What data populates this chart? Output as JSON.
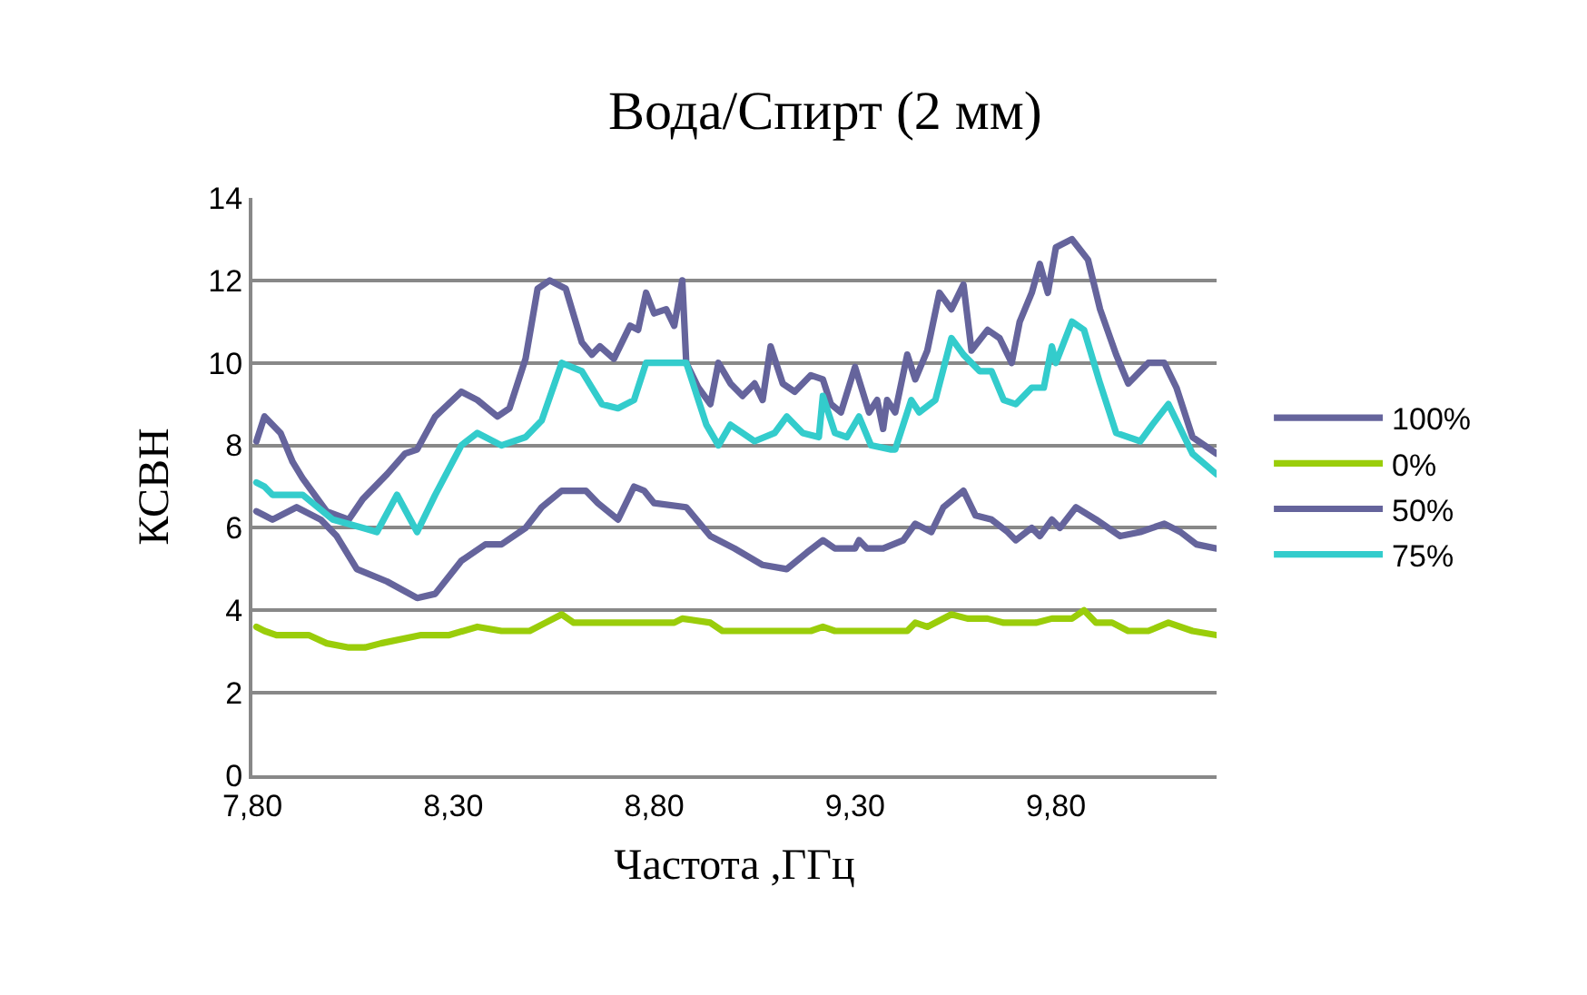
{
  "chart_data": {
    "type": "line",
    "title": "Вода/Спирт (2 мм)",
    "xlabel": "Частота ,ГГц",
    "ylabel": "КСВН",
    "xlim": [
      7.8,
      10.2
    ],
    "xticks": [
      {
        "value": 7.8,
        "label": "7,80"
      },
      {
        "value": 8.3,
        "label": "8,30"
      },
      {
        "value": 8.8,
        "label": "8,80"
      },
      {
        "value": 9.3,
        "label": "9,30"
      },
      {
        "value": 9.8,
        "label": "9,80"
      }
    ],
    "ylim": [
      0,
      14
    ],
    "yticks": [
      0,
      2,
      4,
      6,
      8,
      10,
      12,
      14
    ],
    "grid": "y",
    "legend": "right",
    "marker": "none",
    "line_style": "solid",
    "series": [
      {
        "name": "100%",
        "color": "#65649c",
        "x": [
          7.81,
          7.83,
          7.87,
          7.9,
          7.925,
          7.985,
          8.04,
          8.075,
          8.135,
          8.18,
          8.21,
          8.255,
          8.32,
          8.36,
          8.41,
          8.44,
          8.48,
          8.51,
          8.54,
          8.58,
          8.62,
          8.645,
          8.665,
          8.7,
          8.74,
          8.76,
          8.78,
          8.8,
          8.83,
          8.85,
          8.87,
          8.88,
          8.91,
          8.94,
          8.96,
          8.99,
          9.02,
          9.05,
          9.07,
          9.09,
          9.12,
          9.15,
          9.19,
          9.22,
          9.24,
          9.265,
          9.3,
          9.335,
          9.355,
          9.37,
          9.38,
          9.4,
          9.43,
          9.45,
          9.48,
          9.51,
          9.54,
          9.57,
          9.59,
          9.63,
          9.66,
          9.69,
          9.71,
          9.74,
          9.76,
          9.78,
          9.8,
          9.84,
          9.88,
          9.91,
          9.95,
          9.98,
          10.03,
          10.07,
          10.1,
          10.14,
          10.2
        ],
        "values": [
          8.1,
          8.7,
          8.3,
          7.6,
          7.2,
          6.4,
          6.2,
          6.7,
          7.3,
          7.8,
          7.9,
          8.7,
          9.3,
          9.1,
          8.7,
          8.9,
          10.1,
          11.8,
          12,
          11.8,
          10.5,
          10.2,
          10.4,
          10.1,
          10.9,
          10.8,
          11.7,
          11.2,
          11.3,
          10.9,
          12,
          10,
          9.4,
          9,
          10,
          9.5,
          9.2,
          9.5,
          9.1,
          10.4,
          9.5,
          9.3,
          9.7,
          9.6,
          9,
          8.8,
          9.9,
          8.8,
          9.1,
          8.4,
          9.1,
          8.8,
          10.2,
          9.6,
          10.3,
          11.7,
          11.3,
          11.9,
          10.3,
          10.8,
          10.6,
          10,
          11,
          11.7,
          12.4,
          11.7,
          12.8,
          13,
          12.5,
          11.3,
          10.2,
          9.5,
          10,
          10,
          9.4,
          8.2,
          7.8
        ]
      },
      {
        "name": "0%",
        "color": "#9acd0a",
        "x": [
          7.81,
          7.83,
          7.86,
          7.94,
          7.985,
          8.04,
          8.08,
          8.12,
          8.22,
          8.29,
          8.36,
          8.42,
          8.49,
          8.53,
          8.57,
          8.6,
          8.85,
          8.87,
          8.94,
          8.97,
          9.19,
          9.22,
          9.25,
          9.43,
          9.45,
          9.48,
          9.54,
          9.58,
          9.63,
          9.67,
          9.75,
          9.79,
          9.84,
          9.87,
          9.9,
          9.94,
          9.98,
          10.03,
          10.08,
          10.14,
          10.2
        ],
        "values": [
          3.6,
          3.5,
          3.4,
          3.4,
          3.2,
          3.1,
          3.1,
          3.2,
          3.4,
          3.4,
          3.6,
          3.5,
          3.5,
          3.7,
          3.9,
          3.7,
          3.7,
          3.8,
          3.7,
          3.5,
          3.5,
          3.6,
          3.5,
          3.5,
          3.7,
          3.6,
          3.9,
          3.8,
          3.8,
          3.7,
          3.7,
          3.8,
          3.8,
          4.0,
          3.7,
          3.7,
          3.5,
          3.5,
          3.7,
          3.5,
          3.4
        ]
      },
      {
        "name": "50%",
        "color": "#65649c",
        "x": [
          7.81,
          7.83,
          7.85,
          7.91,
          7.97,
          8.01,
          8.06,
          8.135,
          8.21,
          8.255,
          8.32,
          8.38,
          8.42,
          8.48,
          8.52,
          8.57,
          8.63,
          8.66,
          8.71,
          8.75,
          8.775,
          8.8,
          8.88,
          8.94,
          9.0,
          9.07,
          9.13,
          9.18,
          9.22,
          9.25,
          9.3,
          9.31,
          9.33,
          9.37,
          9.42,
          9.45,
          9.49,
          9.52,
          9.57,
          9.6,
          9.64,
          9.68,
          9.7,
          9.74,
          9.76,
          9.79,
          9.81,
          9.85,
          9.9,
          9.96,
          10.01,
          10.07,
          10.11,
          10.15,
          10.2
        ],
        "values": [
          6.4,
          6.3,
          6.2,
          6.5,
          6.2,
          5.8,
          5,
          4.7,
          4.3,
          4.4,
          5.2,
          5.6,
          5.6,
          6,
          6.5,
          6.9,
          6.9,
          6.6,
          6.2,
          7,
          6.9,
          6.6,
          6.5,
          5.8,
          5.5,
          5.1,
          5,
          5.4,
          5.7,
          5.5,
          5.5,
          5.7,
          5.5,
          5.5,
          5.7,
          6.1,
          5.9,
          6.5,
          6.9,
          6.3,
          6.2,
          5.9,
          5.7,
          6,
          5.8,
          6.2,
          6,
          6.5,
          6.2,
          5.8,
          5.9,
          6.1,
          5.9,
          5.6,
          5.5
        ]
      },
      {
        "name": "75%",
        "color": "#33cccc",
        "x": [
          7.81,
          7.83,
          7.85,
          7.925,
          8.0,
          8.075,
          8.11,
          8.16,
          8.21,
          8.255,
          8.32,
          8.36,
          8.42,
          8.48,
          8.52,
          8.57,
          8.62,
          8.67,
          8.71,
          8.75,
          8.78,
          8.85,
          8.88,
          8.93,
          8.96,
          8.99,
          9.05,
          9.1,
          9.13,
          9.17,
          9.21,
          9.22,
          9.25,
          9.28,
          9.31,
          9.34,
          9.39,
          9.4,
          9.44,
          9.46,
          9.5,
          9.54,
          9.57,
          9.61,
          9.64,
          9.67,
          9.7,
          9.74,
          9.77,
          9.79,
          9.8,
          9.84,
          9.87,
          9.91,
          9.95,
          10.01,
          10.04,
          10.08,
          10.14,
          10.2
        ],
        "values": [
          7.1,
          7.0,
          6.8,
          6.8,
          6.2,
          6,
          5.9,
          6.8,
          5.9,
          6.8,
          8,
          8.3,
          8,
          8.2,
          8.6,
          10,
          9.8,
          9,
          8.9,
          9.1,
          10,
          10,
          10,
          8.5,
          8,
          8.5,
          8.1,
          8.3,
          8.7,
          8.3,
          8.2,
          9.2,
          8.3,
          8.2,
          8.7,
          8,
          7.9,
          7.9,
          9.1,
          8.8,
          9.1,
          10.6,
          10.2,
          9.8,
          9.8,
          9.1,
          9,
          9.4,
          9.4,
          10.4,
          10,
          11,
          10.8,
          9.5,
          8.3,
          8.1,
          8.5,
          9,
          7.8,
          7.3
        ]
      }
    ]
  }
}
